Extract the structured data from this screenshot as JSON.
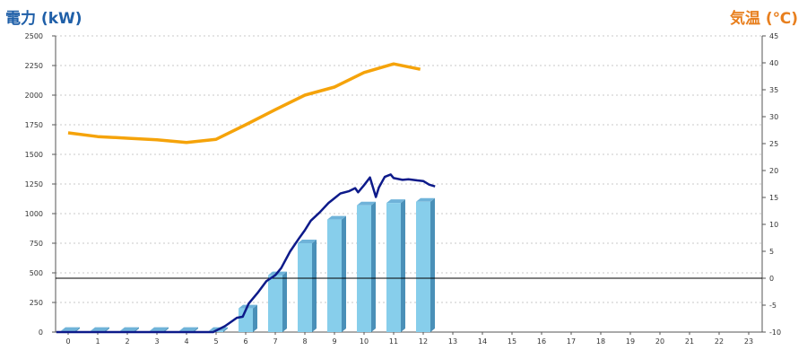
{
  "titles": {
    "left": "電力 (kW)",
    "right": "気温 (℃)"
  },
  "colors": {
    "bar": "#87ceeb",
    "bar_side": "#4a90b8",
    "power_line": "#0d1a8a",
    "temp_line": "#f5a30a",
    "grid": "#c8c8c8",
    "hline": "#000000"
  },
  "chart_data": {
    "type": "bar",
    "categories": [
      "0",
      "1",
      "2",
      "3",
      "4",
      "5",
      "6",
      "7",
      "8",
      "9",
      "10",
      "11",
      "12",
      "13",
      "14",
      "15",
      "16",
      "17",
      "18",
      "19",
      "20",
      "21",
      "22",
      "23"
    ],
    "y_left": {
      "label": "電力 (kW)",
      "lim": [
        0,
        2500
      ],
      "ticks": [
        0,
        250,
        500,
        750,
        1000,
        1250,
        1500,
        1750,
        2000,
        2250,
        2500
      ]
    },
    "y_right": {
      "label": "気温 (℃)",
      "lim": [
        -10,
        45
      ],
      "ticks": [
        -10,
        -5,
        0,
        5,
        10,
        15,
        20,
        25,
        30,
        35,
        40,
        45
      ]
    },
    "grid": true,
    "reference_line": {
      "axis": "right",
      "value": 0
    },
    "bars": {
      "axis": "left",
      "values": [
        10,
        10,
        10,
        10,
        10,
        10,
        200,
        480,
        750,
        950,
        1070,
        1090,
        1100,
        null,
        null,
        null,
        null,
        null,
        null,
        null,
        null,
        null,
        null,
        null
      ]
    },
    "power_line": {
      "axis": "left",
      "points": [
        [
          -0.4,
          0
        ],
        [
          4.9,
          0
        ],
        [
          5.3,
          50
        ],
        [
          5.7,
          120
        ],
        [
          5.9,
          130
        ],
        [
          6.1,
          240
        ],
        [
          6.4,
          330
        ],
        [
          6.7,
          430
        ],
        [
          7.0,
          480
        ],
        [
          7.2,
          540
        ],
        [
          7.5,
          680
        ],
        [
          7.8,
          790
        ],
        [
          8.0,
          860
        ],
        [
          8.2,
          940
        ],
        [
          8.5,
          1010
        ],
        [
          8.8,
          1090
        ],
        [
          9.0,
          1130
        ],
        [
          9.2,
          1170
        ],
        [
          9.5,
          1190
        ],
        [
          9.7,
          1215
        ],
        [
          9.8,
          1180
        ],
        [
          10.0,
          1240
        ],
        [
          10.2,
          1305
        ],
        [
          10.4,
          1140
        ],
        [
          10.5,
          1220
        ],
        [
          10.7,
          1310
        ],
        [
          10.9,
          1330
        ],
        [
          11.0,
          1300
        ],
        [
          11.3,
          1285
        ],
        [
          11.5,
          1290
        ],
        [
          11.8,
          1280
        ],
        [
          12.0,
          1275
        ],
        [
          12.2,
          1245
        ],
        [
          12.4,
          1230
        ]
      ]
    },
    "temperature_line": {
      "axis": "right",
      "points": [
        [
          0,
          27
        ],
        [
          1,
          26.3
        ],
        [
          2,
          26.0
        ],
        [
          3,
          25.7
        ],
        [
          4,
          25.2
        ],
        [
          5,
          25.8
        ],
        [
          6,
          28.5
        ],
        [
          7,
          31.3
        ],
        [
          8,
          34.0
        ],
        [
          9,
          35.5
        ],
        [
          10,
          38.2
        ],
        [
          11,
          39.8
        ],
        [
          11.9,
          38.8
        ]
      ]
    }
  }
}
